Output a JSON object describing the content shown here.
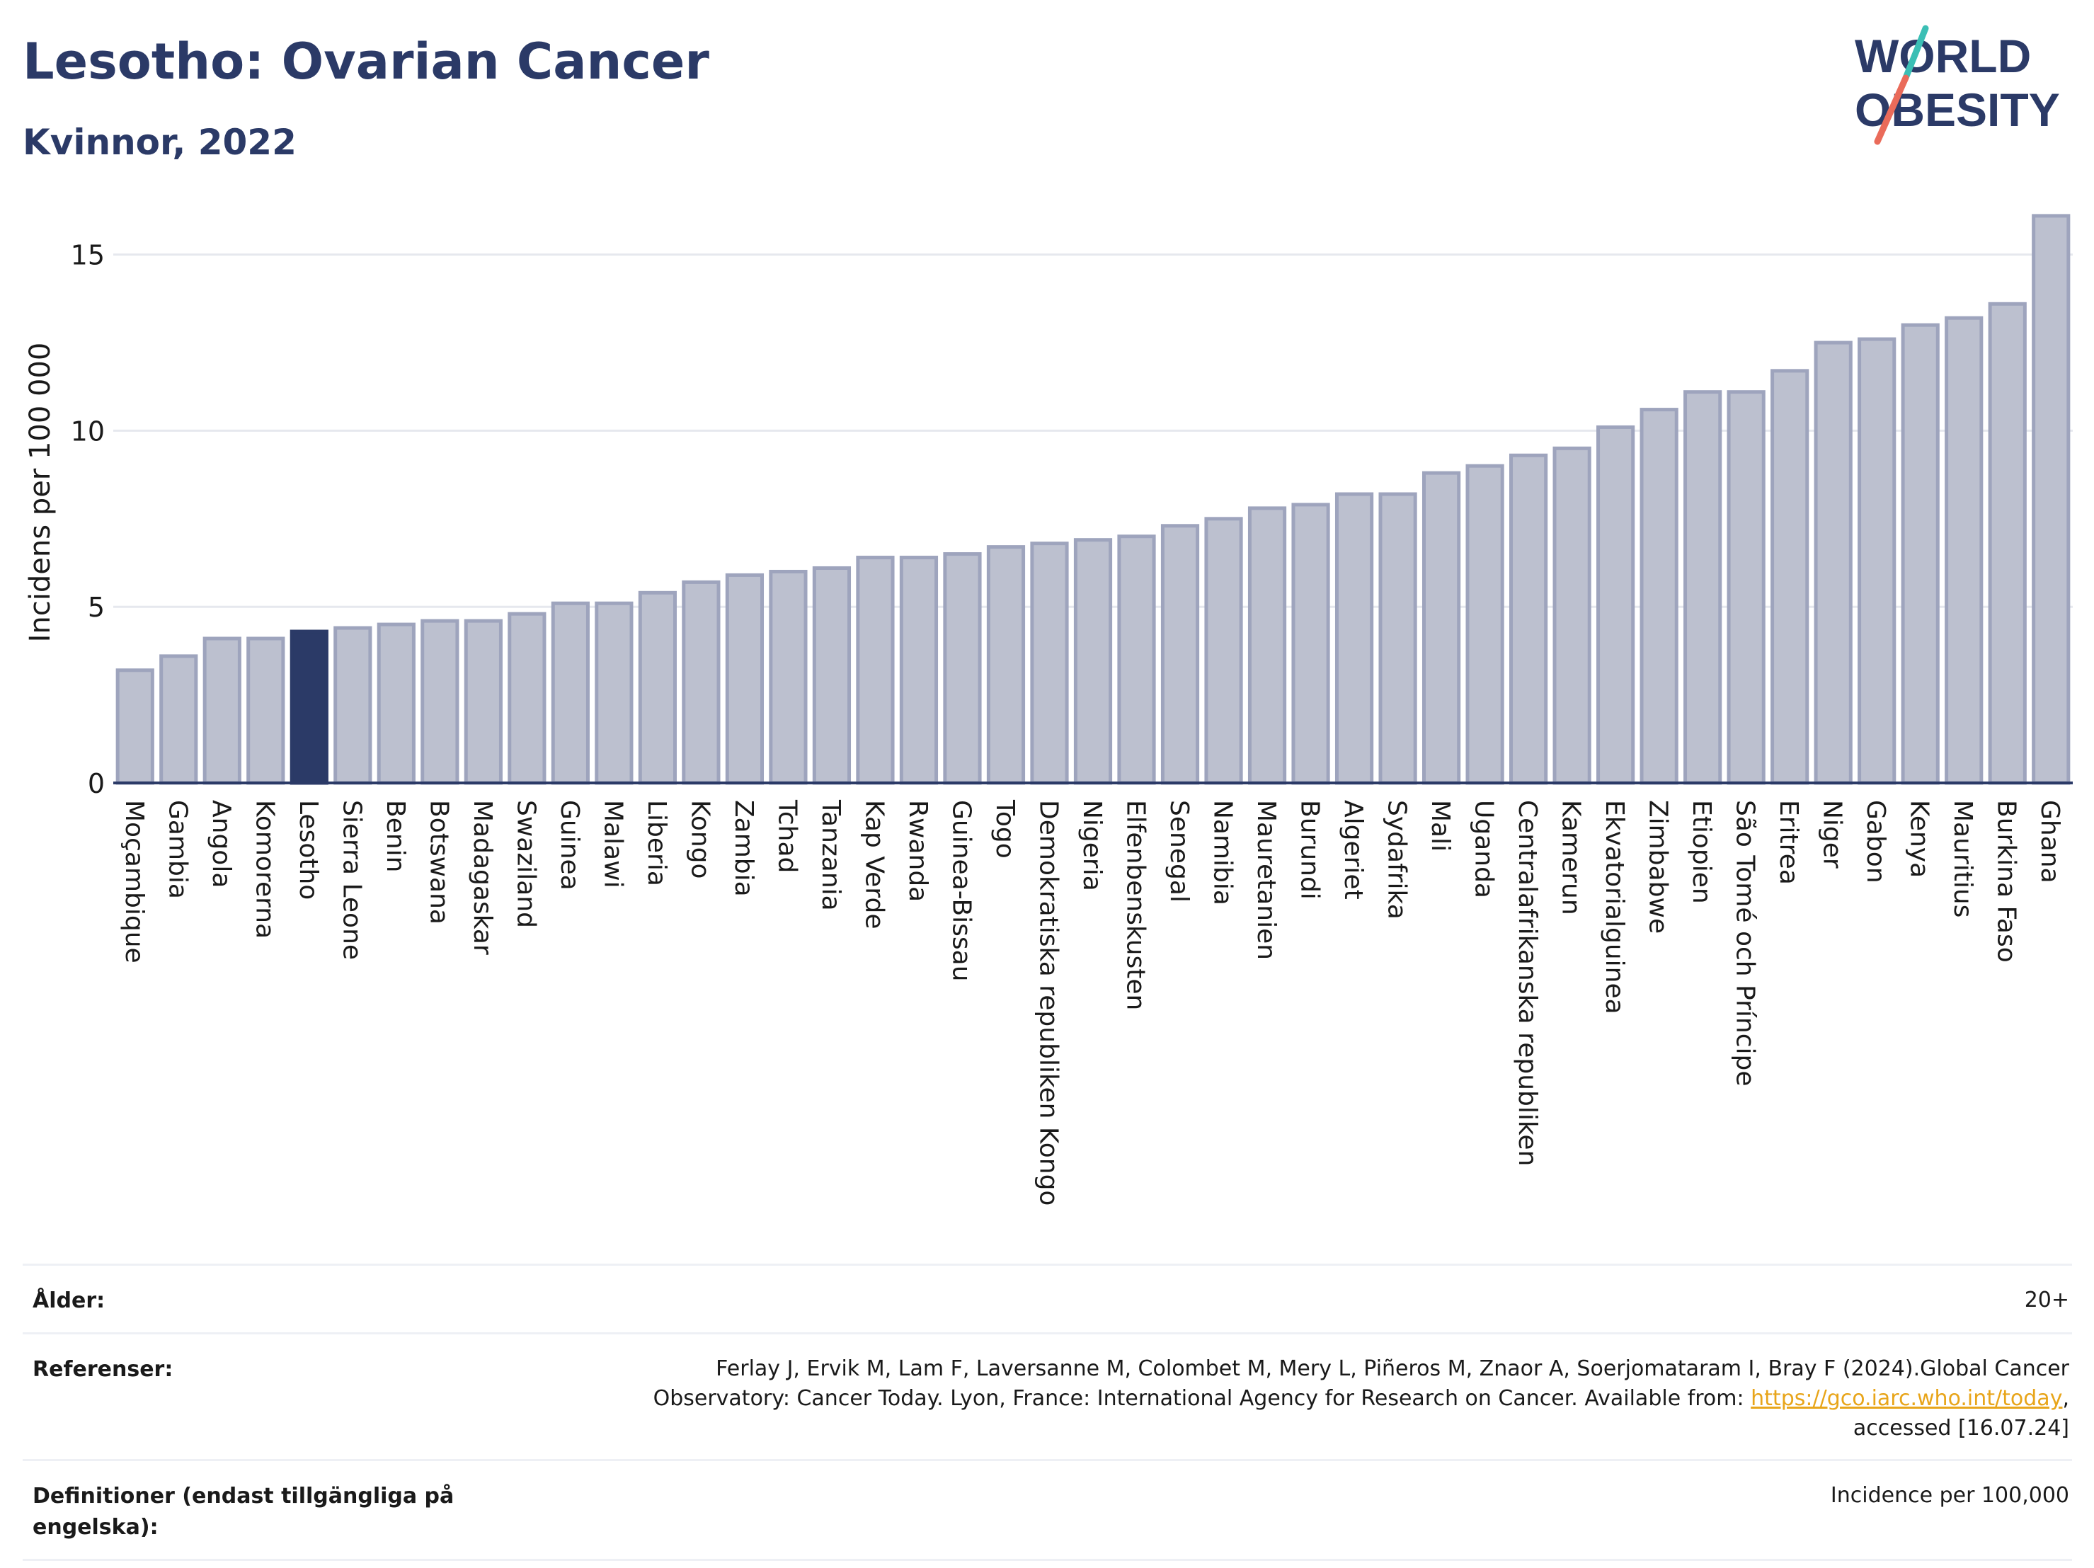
{
  "header": {
    "title": "Lesotho: Ovarian Cancer",
    "subtitle": "Kvinnor, 2022"
  },
  "logo": {
    "line1": "WORLD",
    "line2": "OBESITY"
  },
  "chart_data": {
    "type": "bar",
    "title": "Lesotho: Ovarian Cancer",
    "subtitle": "Kvinnor, 2022",
    "ylabel": "Incidens per 100 000",
    "xlabel": "",
    "ylim": [
      0,
      16.5
    ],
    "yticks": [
      0,
      5,
      10,
      15
    ],
    "grid": true,
    "highlight": "Lesotho",
    "colors": {
      "bar": "#bcc0cf",
      "bar_edge": "#9ea4bd",
      "highlight": "#2b3a67",
      "grid": "#e6e8ee",
      "axis": "#2b3a67"
    },
    "categories": [
      "Moçambique",
      "Gambia",
      "Angola",
      "Komorerna",
      "Lesotho",
      "Sierra Leone",
      "Benin",
      "Botswana",
      "Madagaskar",
      "Swaziland",
      "Guinea",
      "Malawi",
      "Liberia",
      "Kongo",
      "Zambia",
      "Tchad",
      "Tanzania",
      "Kap Verde",
      "Rwanda",
      "Guinea-Bissau",
      "Togo",
      "Demokratiska republiken Kongo",
      "Nigeria",
      "Elfenbenskusten",
      "Senegal",
      "Namibia",
      "Mauretanien",
      "Burundi",
      "Algeriet",
      "Sydafrika",
      "Mali",
      "Uganda",
      "Centralafrikanska republiken",
      "Kamerun",
      "Ekvatorialguinea",
      "Zimbabwe",
      "Etiopien",
      "São Tomé och Príncipe",
      "Eritrea",
      "Niger",
      "Gabon",
      "Kenya",
      "Mauritius",
      "Burkina Faso",
      "Ghana"
    ],
    "values": [
      3.2,
      3.6,
      4.1,
      4.1,
      4.3,
      4.4,
      4.5,
      4.6,
      4.6,
      4.8,
      5.1,
      5.1,
      5.4,
      5.7,
      5.9,
      6.0,
      6.1,
      6.4,
      6.4,
      6.5,
      6.7,
      6.8,
      6.9,
      7.0,
      7.3,
      7.5,
      7.8,
      7.9,
      8.2,
      8.2,
      8.8,
      9.0,
      9.3,
      9.5,
      10.1,
      10.6,
      11.1,
      11.1,
      11.7,
      12.5,
      12.6,
      13.0,
      13.2,
      13.6,
      16.1
    ]
  },
  "footer": {
    "age_label": "Ålder:",
    "age_value": "20+",
    "ref_label": "Referenser:",
    "ref_text_1": "Ferlay J, Ervik M, Lam F, Laversanne M, Colombet M, Mery L, Piñeros M, Znaor A, Soerjomataram I, Bray F (2024).Global Cancer Observatory: Cancer Today. Lyon, France: International Agency for Research on Cancer. Available from: ",
    "ref_link": "https://gco.iarc.who.int/today",
    "ref_text_2": ", accessed [16.07.24]",
    "def_label": "Definitioner (endast tillgängliga på engelska):",
    "def_value": "Incidence per 100,000"
  }
}
